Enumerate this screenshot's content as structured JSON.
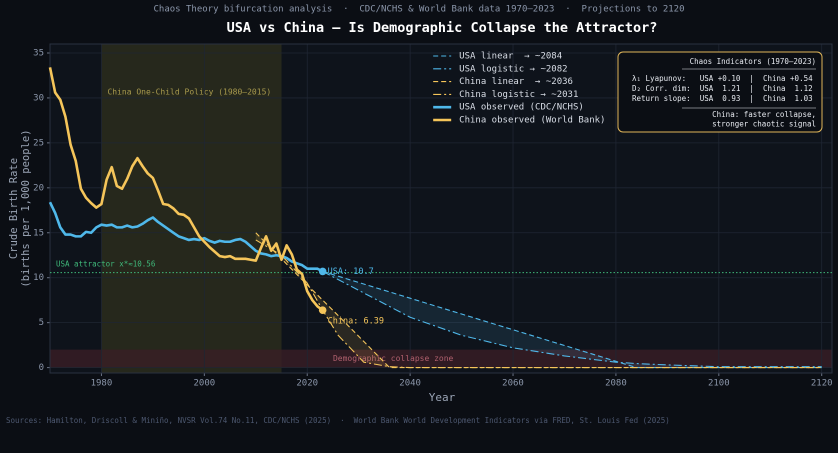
{
  "chart_data": {
    "type": "line",
    "subtitle": "Chaos Theory bifurcation analysis  ·  CDC/NCHS & World Bank data 1970–2023  ·  Projections to 2120",
    "title": "USA vs China — Is Demographic Collapse the Attractor?",
    "xlabel": "Year",
    "ylabel": [
      "Crude Birth Rate",
      "(births per 1,000 people)"
    ],
    "source": "Sources: Hamilton, Driscoll & Miniño, NVSR Vol.74 No.11, CDC/NCHS (2025)  ·  World Bank World Development Indicators via FRED, St. Louis Fed (2025)",
    "xlim": [
      1970,
      2122
    ],
    "ylim": [
      -0.6,
      36
    ],
    "xticks": [
      1980,
      2000,
      2020,
      2040,
      2060,
      2080,
      2100,
      2120
    ],
    "yticks": [
      0,
      5,
      10,
      15,
      20,
      25,
      30,
      35
    ],
    "grid": true,
    "legend": "upper center",
    "series": [
      {
        "name": "USA linear  → ~2084",
        "color": "#4fb8ea",
        "dash": "dashed",
        "x": [
          2023,
          2030,
          2040,
          2050,
          2060,
          2070,
          2080,
          2084,
          2090,
          2100,
          2110,
          2120
        ],
        "values": [
          10.7,
          9.47,
          7.72,
          5.96,
          4.21,
          2.46,
          0.7,
          0,
          0,
          0,
          0,
          0
        ]
      },
      {
        "name": "USA logistic → ~2082",
        "color": "#4fb8ea",
        "dash": "dashdot",
        "x": [
          2023,
          2030,
          2040,
          2050,
          2060,
          2070,
          2080,
          2084,
          2090,
          2100,
          2110,
          2120
        ],
        "values": [
          10.7,
          8.6,
          5.6,
          3.6,
          2.2,
          1.3,
          0.6,
          0.45,
          0.3,
          0.1,
          0.1,
          0.1
        ]
      },
      {
        "name": "China linear  → ~2036",
        "color": "#f5c55a",
        "dash": "dashed",
        "x": [
          2010,
          2015,
          2020,
          2023,
          2026,
          2031,
          2036,
          2040,
          2060,
          2080,
          2100,
          2120
        ],
        "values": [
          15.0,
          12.1,
          9.2,
          7.5,
          5.8,
          2.9,
          0,
          0,
          0,
          0,
          0,
          0
        ]
      },
      {
        "name": "China logistic → ~2031",
        "color": "#f5c55a",
        "dash": "dashdot",
        "x": [
          2010,
          2015,
          2020,
          2023,
          2026,
          2031,
          2036,
          2040,
          2060,
          2080,
          2100,
          2120
        ],
        "values": [
          14.2,
          12.5,
          9.4,
          6.4,
          3.6,
          0.6,
          0.1,
          0,
          0,
          0,
          0,
          0
        ]
      },
      {
        "name": "USA observed (CDC/NCHS)",
        "color": "#4fb8ea",
        "dash": "solid",
        "x": [
          1970,
          1971,
          1972,
          1973,
          1974,
          1975,
          1976,
          1977,
          1978,
          1979,
          1980,
          1981,
          1982,
          1983,
          1984,
          1985,
          1986,
          1987,
          1988,
          1989,
          1990,
          1991,
          1992,
          1993,
          1994,
          1995,
          1996,
          1997,
          1998,
          1999,
          2000,
          2001,
          2002,
          2003,
          2004,
          2005,
          2006,
          2007,
          2008,
          2009,
          2010,
          2011,
          2012,
          2013,
          2014,
          2015,
          2016,
          2017,
          2018,
          2019,
          2020,
          2021,
          2022,
          2023
        ],
        "values": [
          18.4,
          17.2,
          15.6,
          14.8,
          14.8,
          14.6,
          14.6,
          15.1,
          15.0,
          15.6,
          15.9,
          15.8,
          15.9,
          15.6,
          15.6,
          15.8,
          15.6,
          15.7,
          16.0,
          16.4,
          16.7,
          16.2,
          15.8,
          15.4,
          15.0,
          14.6,
          14.4,
          14.2,
          14.3,
          14.2,
          14.4,
          14.1,
          13.9,
          14.1,
          14.0,
          14.0,
          14.2,
          14.3,
          14.0,
          13.5,
          13.0,
          12.7,
          12.6,
          12.4,
          12.5,
          12.4,
          12.2,
          11.8,
          11.6,
          11.4,
          11.0,
          11.0,
          11.0,
          10.7
        ]
      },
      {
        "name": "China observed (World Bank)",
        "color": "#f5c55a",
        "dash": "solid",
        "x": [
          1970,
          1971,
          1972,
          1973,
          1974,
          1975,
          1976,
          1977,
          1978,
          1979,
          1980,
          1981,
          1982,
          1983,
          1984,
          1985,
          1986,
          1987,
          1988,
          1989,
          1990,
          1991,
          1992,
          1993,
          1994,
          1995,
          1996,
          1997,
          1998,
          1999,
          2000,
          2001,
          2002,
          2003,
          2004,
          2005,
          2006,
          2007,
          2008,
          2009,
          2010,
          2011,
          2012,
          2013,
          2014,
          2015,
          2016,
          2017,
          2018,
          2019,
          2020,
          2021,
          2022,
          2023
        ],
        "values": [
          33.4,
          30.6,
          29.8,
          27.9,
          24.8,
          23.0,
          19.9,
          18.9,
          18.3,
          17.8,
          18.2,
          20.9,
          22.3,
          20.2,
          19.9,
          21.0,
          22.4,
          23.3,
          22.4,
          21.6,
          21.1,
          19.7,
          18.2,
          18.1,
          17.7,
          17.1,
          17.0,
          16.6,
          15.6,
          14.6,
          14.0,
          13.4,
          12.9,
          12.4,
          12.3,
          12.4,
          12.1,
          12.1,
          12.1,
          12.0,
          11.9,
          13.3,
          14.6,
          13.0,
          13.8,
          12.0,
          13.6,
          12.6,
          10.9,
          10.4,
          8.5,
          7.5,
          6.8,
          6.39
        ]
      }
    ],
    "endpoint_labels": [
      "USA: 10.7",
      "China: 6.39"
    ],
    "policy_band": {
      "label": "China One-Child Policy (1980–2015)",
      "range": [
        1980,
        2015
      ],
      "color": "#3a3a1e"
    },
    "attractor": {
      "label": "USA attractor x*≈10.56",
      "value": 10.56,
      "color": "#3fb87a"
    },
    "collapse_zone": {
      "label": "Demographic collapse zone",
      "range": [
        0,
        2
      ],
      "color": "#3a1e26"
    },
    "indicator_box": {
      "title": "Chaos Indicators (1970–2023)",
      "rows": [
        "λ₁ Lyapunov:   USA +0.10  |  China +0.54",
        "D₂ Corr. dim:  USA  1.21  |  China  1.12",
        "Return slope:  USA  0.93  |  China  1.03"
      ],
      "note": [
        "China: faster collapse,",
        "stronger chaotic signal"
      ]
    }
  }
}
